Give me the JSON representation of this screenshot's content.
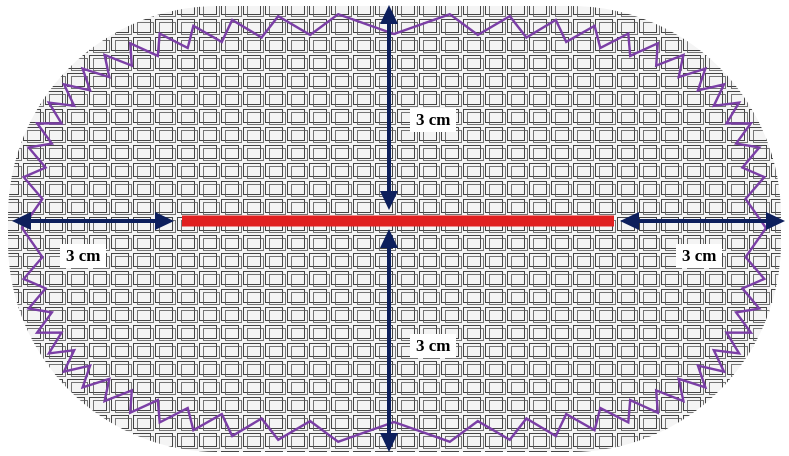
{
  "labels": {
    "top": "3 cm",
    "left": "3 cm",
    "right": "3 cm",
    "bottom": "3 cm"
  },
  "colors": {
    "mesh": "#333333",
    "incision": "#e02020",
    "arrow": "#0d1f5c",
    "zigzag": "#7b3fa6"
  }
}
